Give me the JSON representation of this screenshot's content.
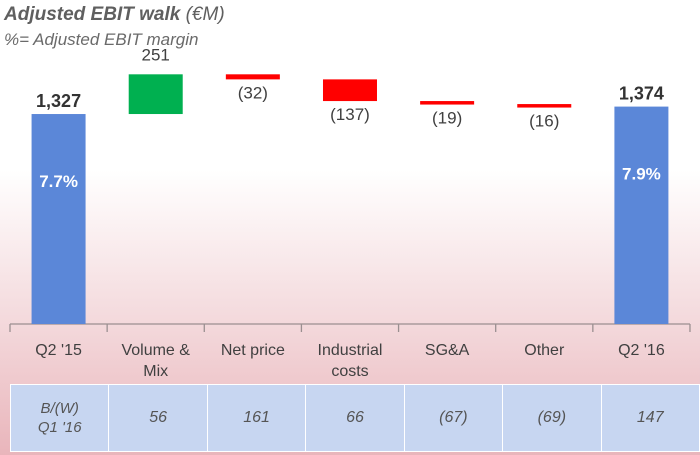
{
  "title": "Adjusted EBIT walk",
  "title_unit": "(€M)",
  "subtitle": "%= Adjusted EBIT margin",
  "colors": {
    "total": "#5b87d8",
    "increase": "#00b050",
    "decrease": "#ff0000",
    "axis": "#9a8f90",
    "label": "#404040",
    "total_label": "#333333",
    "margin_text": "#ffffff"
  },
  "chart_data": {
    "type": "bar",
    "subtype": "waterfall",
    "title": "Adjusted EBIT walk",
    "subtitle": "%= Adjusted EBIT margin",
    "unit": "€M",
    "categories": [
      "Q2 '15",
      "Volume & Mix",
      "Net price",
      "Industrial costs",
      "SG&A",
      "Other",
      "Q2 '16"
    ],
    "category_lines": [
      [
        "Q2 '15"
      ],
      [
        "Volume &",
        "Mix"
      ],
      [
        "Net price"
      ],
      [
        "Industrial",
        "costs"
      ],
      [
        "SG&A"
      ],
      [
        "Other"
      ],
      [
        "Q2 '16"
      ]
    ],
    "values": [
      1327,
      251,
      -32,
      -137,
      -19,
      -16,
      1374
    ],
    "kinds": [
      "total",
      "increase",
      "decrease",
      "decrease",
      "decrease",
      "decrease",
      "total"
    ],
    "value_labels": [
      "1,327",
      "251",
      "(32)",
      "(137)",
      "(19)",
      "(16)",
      "1,374"
    ],
    "margins": [
      "7.7%",
      null,
      null,
      null,
      null,
      null,
      "7.9%"
    ],
    "ylim": [
      0,
      1580
    ],
    "grid": false,
    "legend": "none"
  },
  "table": {
    "row_label_lines": [
      "B/(W)",
      "Q1 '16"
    ],
    "values": [
      "56",
      "161",
      "66",
      "(67)",
      "(69)",
      "147"
    ]
  }
}
